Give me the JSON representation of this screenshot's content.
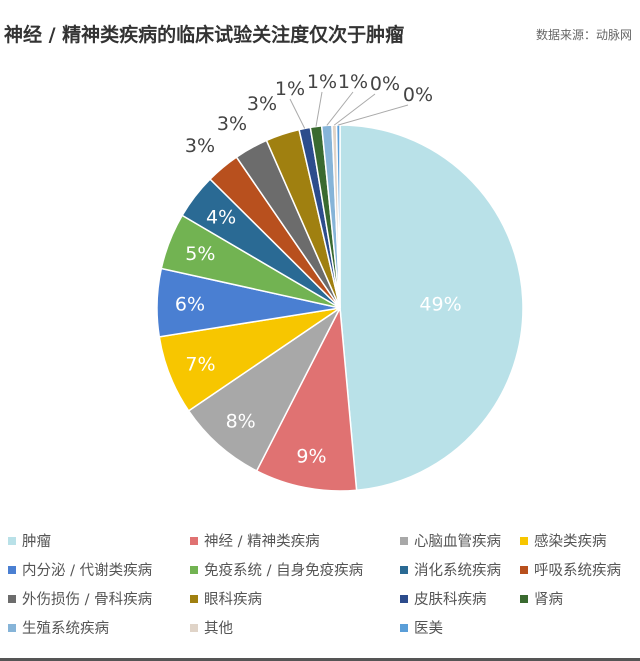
{
  "chart_data": {
    "type": "pie",
    "title": "神经 / 精神类疾病的临床试验关注度仅次于肿瘤",
    "source": "数据来源：动脉网",
    "legend_position": "bottom",
    "start_angle": "12 o'clock, clockwise",
    "slices": [
      {
        "name": "肿瘤",
        "value": 48.7,
        "label": "49%",
        "color": "#b9e1e8"
      },
      {
        "name": "神经 / 精神类疾病",
        "value": 9,
        "label": "9%",
        "color": "#e07272"
      },
      {
        "name": "心脑血管疾病",
        "value": 8,
        "label": "8%",
        "color": "#a8a8a8"
      },
      {
        "name": "感染类疾病",
        "value": 7,
        "label": "7%",
        "color": "#f7c600"
      },
      {
        "name": "内分泌 / 代谢类疾病",
        "value": 6,
        "label": "6%",
        "color": "#4a7fd2"
      },
      {
        "name": "免疫系统 / 自身免疫疾病",
        "value": 5,
        "label": "5%",
        "color": "#72b352"
      },
      {
        "name": "消化系统疾病",
        "value": 4,
        "label": "4%",
        "color": "#2a6a94"
      },
      {
        "name": "呼吸系统疾病",
        "value": 3,
        "label": "3%",
        "color": "#b8501e"
      },
      {
        "name": "外伤损伤 / 骨科疾病",
        "value": 3,
        "label": "3%",
        "color": "#6c6c6c"
      },
      {
        "name": "眼科疾病",
        "value": 3,
        "label": "3%",
        "color": "#a08010"
      },
      {
        "name": "皮肤科疾病",
        "value": 1,
        "label": "1%",
        "color": "#2c4c8c"
      },
      {
        "name": "肾病",
        "value": 1,
        "label": "1%",
        "color": "#3a6a30"
      },
      {
        "name": "生殖系统疾病",
        "value": 0.9,
        "label": "1%",
        "color": "#86b4d8"
      },
      {
        "name": "其他",
        "value": 0.4,
        "label": "0%",
        "color": "#e0d4c8"
      },
      {
        "name": "医美",
        "value": 0.3,
        "label": "0%",
        "color": "#5a9ed8"
      }
    ]
  }
}
